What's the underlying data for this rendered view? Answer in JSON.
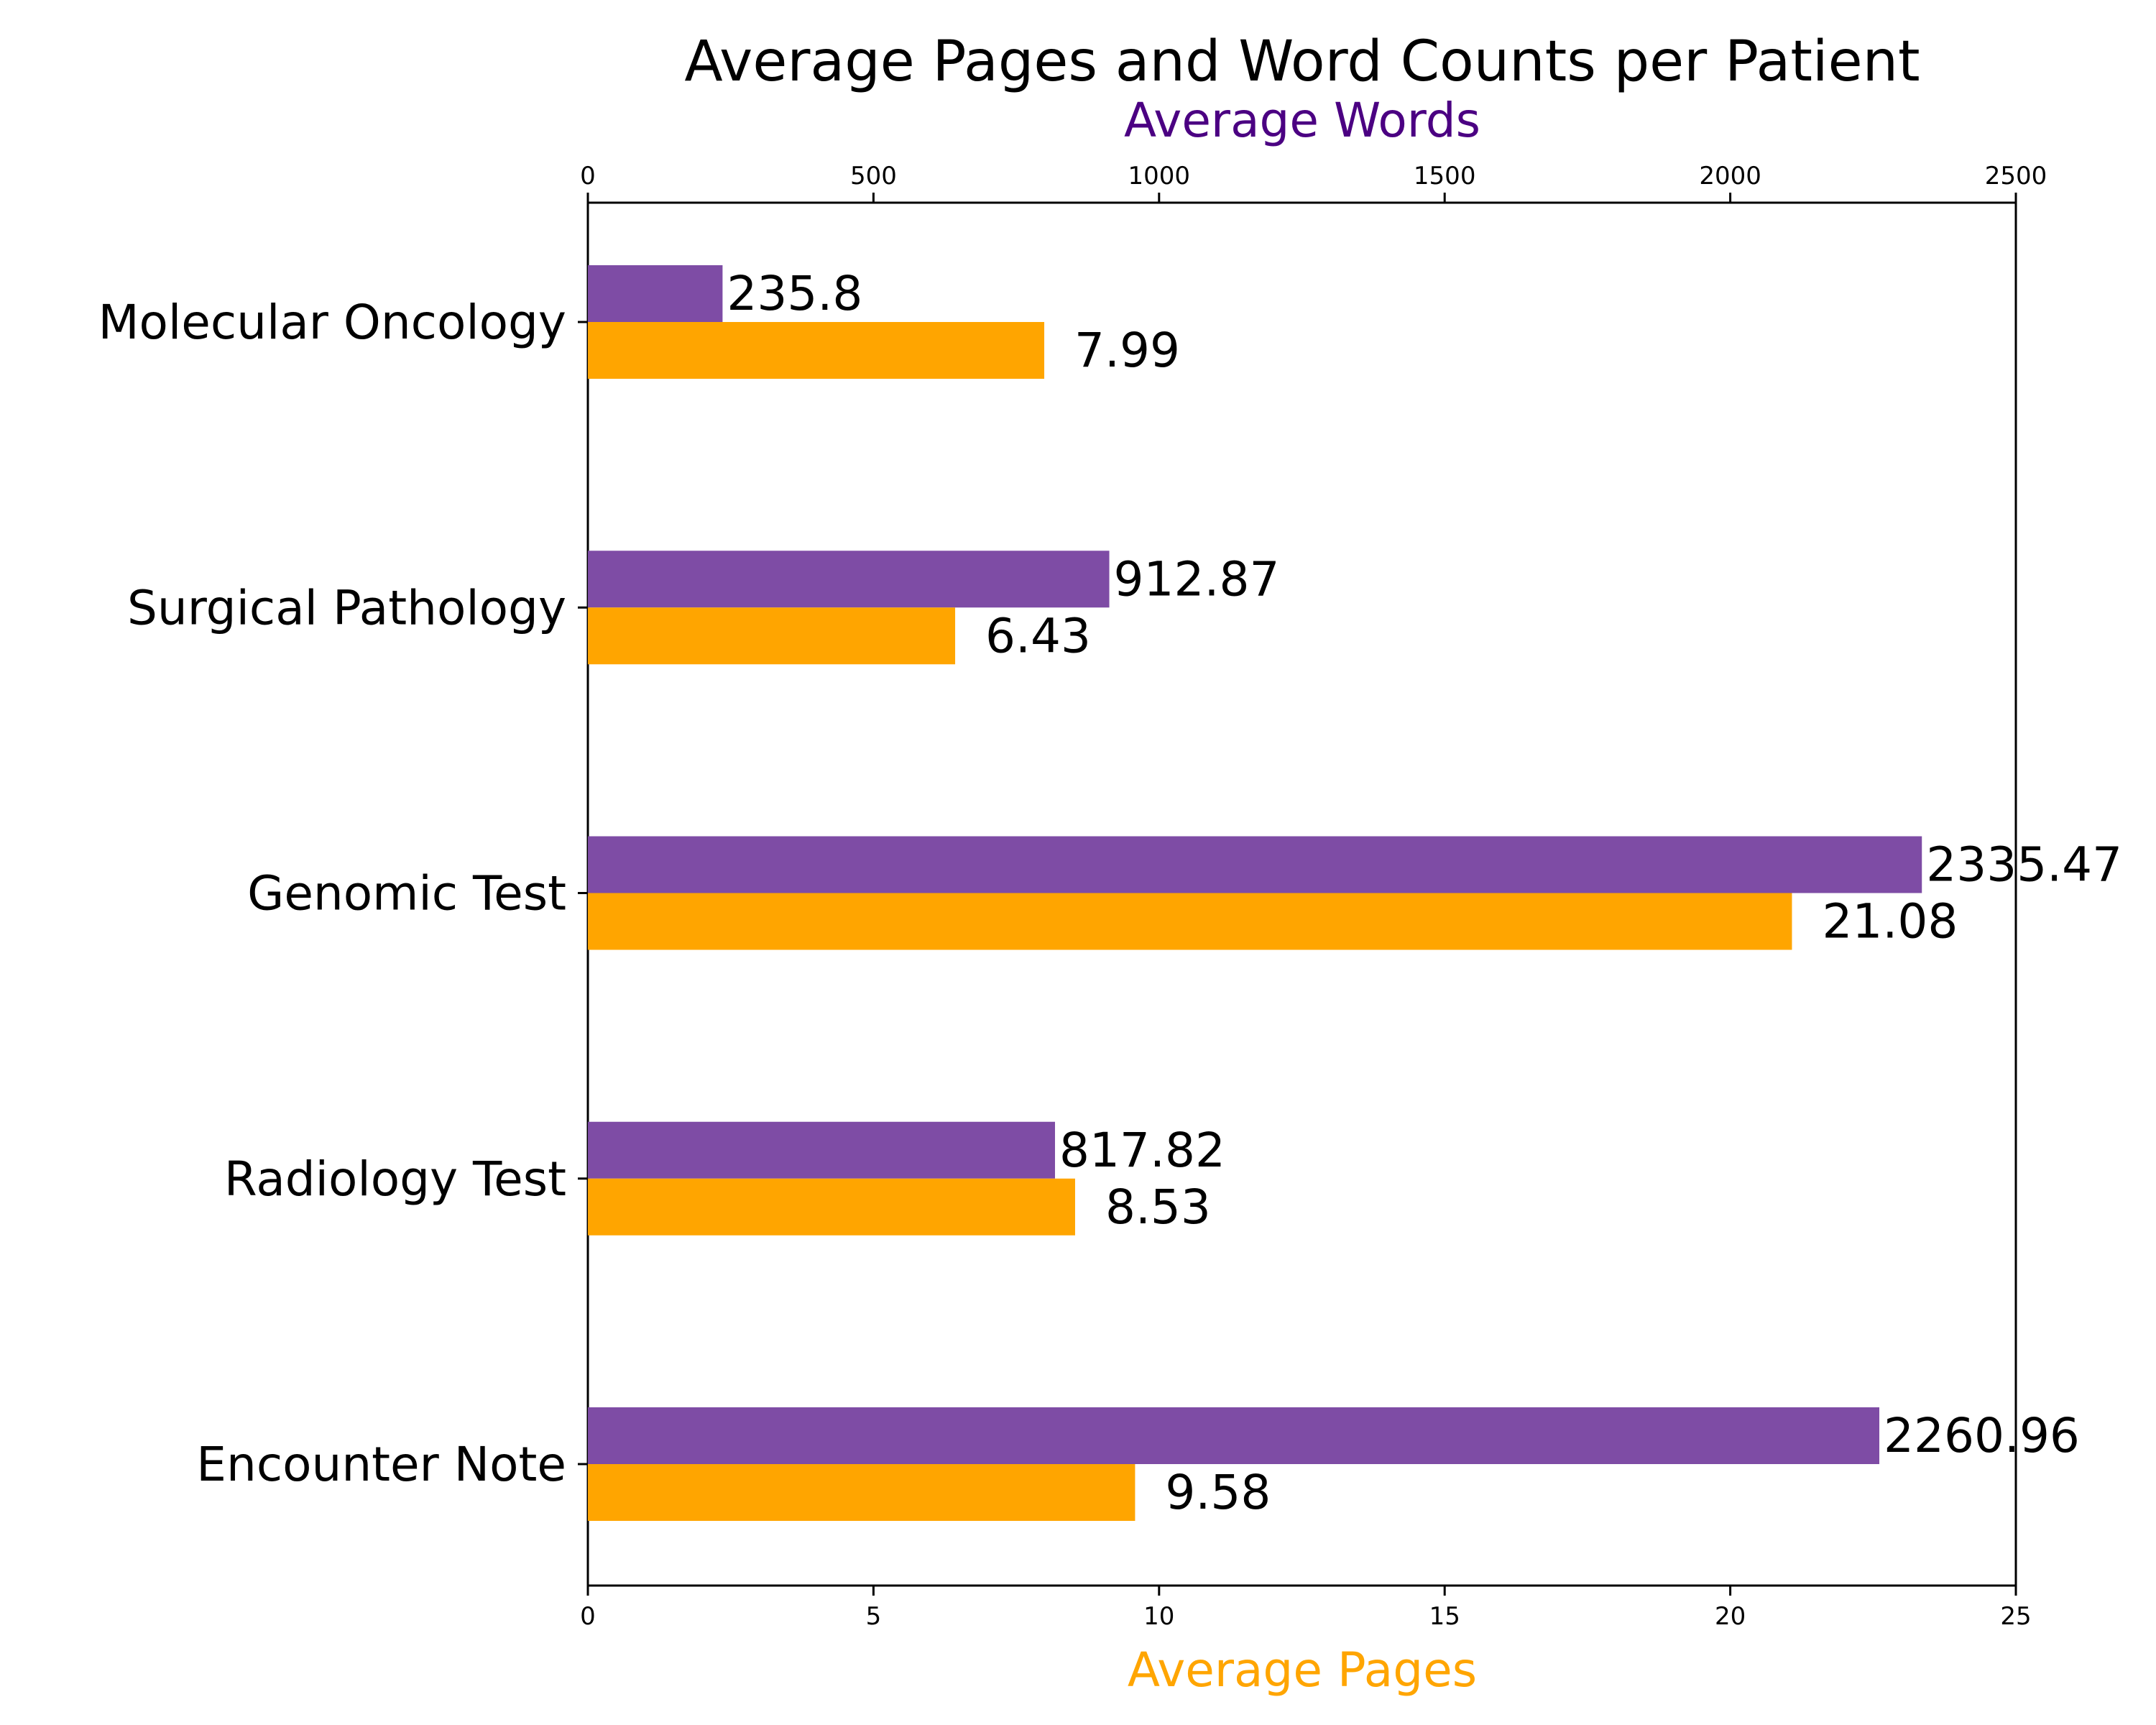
{
  "chart_data": {
    "type": "bar",
    "orientation": "horizontal",
    "title": "Average Pages and Word Counts per Patient",
    "categories": [
      "Molecular Oncology",
      "Surgical Pathology",
      "Genomic Test",
      "Radiology Test",
      "Encounter Note"
    ],
    "series": [
      {
        "name": "",
        "axis": "top",
        "color": "#7e4ca5",
        "values": [
          235.8,
          912.87,
          2335.47,
          817.82,
          2260.96
        ],
        "labels": [
          "235.8",
          "912.87",
          "2335.47",
          "817.82",
          "2260.96"
        ]
      },
      {
        "name": "",
        "axis": "bottom",
        "color": "#ffa500",
        "values": [
          7.99,
          6.43,
          21.08,
          8.53,
          9.58
        ],
        "labels": [
          "7.99",
          "6.43",
          "21.08",
          "8.53",
          "9.58"
        ]
      }
    ],
    "top_axis": {
      "label": "Average Words",
      "label_color": "#4b0082",
      "range": [
        0,
        2500
      ],
      "ticks": [
        "0",
        "500",
        "1000",
        "1500",
        "2000",
        "2500"
      ]
    },
    "bottom_axis": {
      "label": "Average Pages",
      "label_color": "#ffa500",
      "range": [
        0,
        25
      ],
      "ticks": [
        "0",
        "5",
        "10",
        "15",
        "20",
        "25"
      ]
    },
    "grid": false,
    "legend": "none"
  }
}
